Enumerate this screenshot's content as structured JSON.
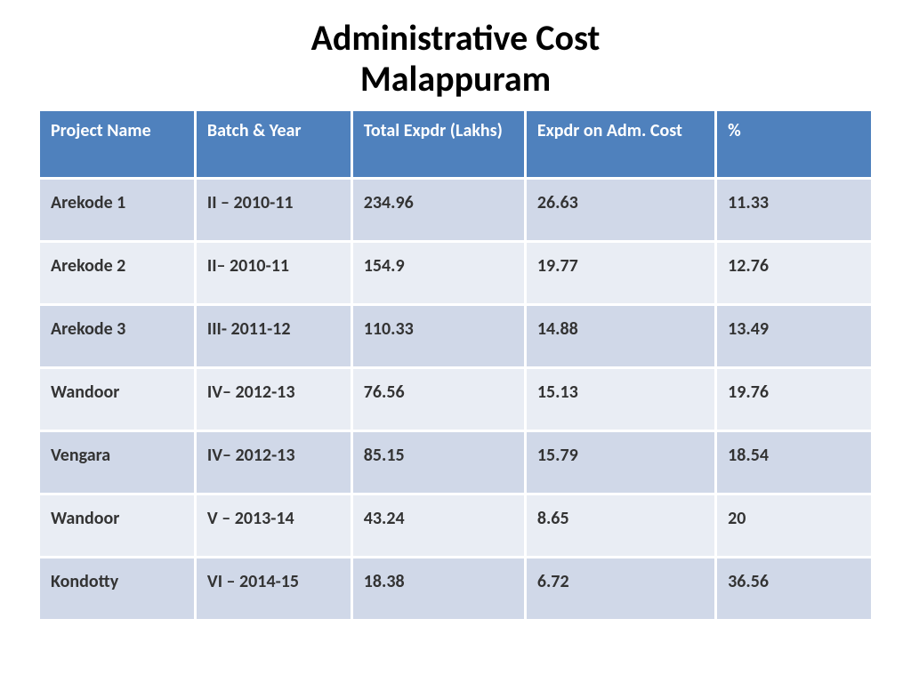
{
  "title_line1": "Administrative Cost",
  "title_line2": "Malappuram",
  "table": {
    "type": "table",
    "header_bg": "#4f81bd",
    "header_fg": "#ffffff",
    "row_odd_bg": "#d0d8e8",
    "row_even_bg": "#e9edf4",
    "cell_fg": "#333333",
    "font_family": "Calibri",
    "header_fontsize": 20,
    "cell_fontsize": 20,
    "font_weight": "bold",
    "columns": [
      {
        "label": "Project Name",
        "width_pct": 18
      },
      {
        "label": "Batch & Year",
        "width_pct": 18
      },
      {
        "label": "Total Expdr (Lakhs)",
        "width_pct": 20
      },
      {
        "label": "Expdr on Adm. Cost",
        "width_pct": 22
      },
      {
        "label": "%",
        "width_pct": 18
      }
    ],
    "rows": [
      [
        "Arekode 1",
        "II – 2010-11",
        "234.96",
        "26.63",
        "11.33"
      ],
      [
        "Arekode 2",
        "II– 2010-11",
        "154.9",
        "19.77",
        "12.76"
      ],
      [
        "Arekode 3",
        "III- 2011-12",
        "110.33",
        "14.88",
        "13.49"
      ],
      [
        "Wandoor",
        "IV– 2012-13",
        "76.56",
        "15.13",
        "19.76"
      ],
      [
        "Vengara",
        "IV– 2012-13",
        "85.15",
        "15.79",
        "18.54"
      ],
      [
        "Wandoor",
        "V – 2013-14",
        "43.24",
        "8.65",
        "20"
      ],
      [
        "Kondotty",
        "VI – 2014-15",
        "18.38",
        "6.72",
        "36.56"
      ]
    ]
  }
}
